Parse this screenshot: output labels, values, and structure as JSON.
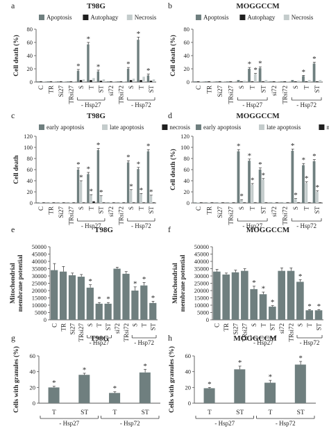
{
  "figure_colors": {
    "dark": "#6f7f7f",
    "mid": "#8a9898",
    "light": "#c4cccc",
    "black": "#1f1f1f",
    "axis": "#555555"
  },
  "chart_data": [
    {
      "id": "a",
      "panel_letter": "a",
      "title": "T98G",
      "type": "bar",
      "ylabel": "Cell death (%)",
      "ylim": [
        0,
        80
      ],
      "yticks": [
        0,
        20,
        40,
        60,
        80
      ],
      "categories": [
        "C",
        "TR",
        "Si27",
        "TRsi27",
        "S",
        "T",
        "ST",
        "si72",
        "TRsi72",
        "S",
        "T",
        "ST"
      ],
      "groups": [
        {
          "label": "- Hsp27",
          "from": 4,
          "to": 6
        },
        {
          "label": "- Hsp72",
          "from": 9,
          "to": 11
        }
      ],
      "legend": [
        "Apoptosis",
        "Autophagy",
        "Necrosis"
      ],
      "series": [
        {
          "name": "Apoptosis",
          "color": "#6f7f7f",
          "values": [
            1,
            1,
            1,
            1,
            17,
            57,
            16,
            1,
            1,
            20,
            64,
            10
          ],
          "err": [
            0,
            0,
            0,
            0,
            2,
            3,
            2,
            0,
            0,
            2,
            4,
            2
          ]
        },
        {
          "name": "Autophagy",
          "color": "#1f1f1f",
          "values": [
            1,
            1,
            1,
            1,
            3,
            3,
            2,
            1,
            1,
            3,
            3,
            2
          ],
          "err": [
            0,
            0,
            0,
            0,
            0,
            0,
            0,
            0,
            0,
            0,
            0,
            0
          ]
        },
        {
          "name": "Necrosis",
          "color": "#c4cccc",
          "values": [
            1,
            1,
            1,
            1,
            4,
            6,
            4,
            1,
            1,
            5,
            8,
            4
          ],
          "err": [
            0,
            0,
            0,
            0,
            0,
            0,
            0,
            0,
            0,
            0,
            0,
            0
          ]
        }
      ],
      "marks": [
        {
          "cat": 4,
          "series": 0,
          "text": "*"
        },
        {
          "cat": 5,
          "series": 0,
          "text": "*"
        },
        {
          "cat": 6,
          "series": 0,
          "text": "*"
        },
        {
          "cat": 9,
          "series": 0,
          "text": "*"
        },
        {
          "cat": 10,
          "series": 0,
          "text": "*"
        },
        {
          "cat": 11,
          "series": 0,
          "text": "*"
        }
      ]
    },
    {
      "id": "b",
      "panel_letter": "b",
      "title": "MOGGCCM",
      "type": "bar",
      "ylabel": "Cell death (%)",
      "ylim": [
        0,
        80
      ],
      "yticks": [
        0,
        20,
        40,
        60,
        80
      ],
      "categories": [
        "C",
        "TR",
        "Si27",
        "TRsi27",
        "S",
        "T",
        "ST",
        "si72",
        "TRsi72",
        "S",
        "T",
        "ST"
      ],
      "groups": [
        {
          "label": "- Hsp27",
          "from": 4,
          "to": 6
        },
        {
          "label": "- Hsp72",
          "from": 9,
          "to": 11
        }
      ],
      "legend": [
        "Apoptosis",
        "Autophagy",
        "Necrosis"
      ],
      "series": [
        {
          "name": "Apoptosis",
          "color": "#6f7f7f",
          "values": [
            1,
            1,
            1,
            1,
            3,
            20,
            21,
            1,
            1,
            3,
            9,
            28
          ],
          "err": [
            0,
            0,
            0,
            0,
            0,
            2,
            2,
            0,
            0,
            0,
            1,
            2
          ]
        },
        {
          "name": "Autophagy",
          "color": "#1f1f1f",
          "values": [
            1,
            1,
            1,
            1,
            1,
            1,
            1,
            1,
            1,
            1,
            1,
            1
          ],
          "err": [
            0,
            0,
            0,
            0,
            0,
            0,
            0,
            0,
            0,
            0,
            0,
            0
          ]
        },
        {
          "name": "Necrosis",
          "color": "#c4cccc",
          "values": [
            1,
            1,
            1,
            1,
            2,
            12,
            3,
            1,
            1,
            2,
            3,
            3
          ],
          "err": [
            0,
            0,
            0,
            0,
            0,
            1,
            0,
            0,
            0,
            0,
            0,
            0
          ]
        }
      ],
      "marks": [
        {
          "cat": 5,
          "series": 0,
          "text": "*"
        },
        {
          "cat": 5,
          "series": 2,
          "text": "*"
        },
        {
          "cat": 6,
          "series": 0,
          "text": "*"
        },
        {
          "cat": 10,
          "series": 0,
          "text": "*"
        },
        {
          "cat": 11,
          "series": 0,
          "text": "*"
        }
      ]
    },
    {
      "id": "c",
      "panel_letter": "c",
      "title": "T98G",
      "type": "bar",
      "ylabel": "Cell death",
      "ylim": [
        0,
        120
      ],
      "yticks": [
        0,
        20,
        40,
        60,
        80,
        100,
        120
      ],
      "categories": [
        "C",
        "TR",
        "Si27",
        "TRsi27",
        "S",
        "T",
        "ST",
        "si72",
        "TRsi72",
        "S",
        "T",
        "ST"
      ],
      "groups": [
        {
          "label": "- Hsp27",
          "from": 4,
          "to": 6
        },
        {
          "label": "- Hsp72",
          "from": 9,
          "to": 11
        }
      ],
      "legend": [
        "early apoptosis",
        "late apoptosis",
        "necrosis"
      ],
      "series": [
        {
          "name": "early apoptosis",
          "color": "#6f7f7f",
          "values": [
            1,
            1,
            1,
            1,
            60,
            52,
            95,
            1,
            1,
            73,
            61,
            93
          ],
          "err": [
            0,
            0,
            0,
            0,
            3,
            3,
            3,
            0,
            0,
            3,
            3,
            3
          ]
        },
        {
          "name": "late apoptosis",
          "color": "#c4cccc",
          "values": [
            1,
            1,
            1,
            1,
            38,
            14,
            12,
            1,
            1,
            22,
            16,
            13
          ],
          "err": [
            0,
            0,
            0,
            0,
            2,
            1,
            1,
            0,
            0,
            2,
            1,
            1
          ]
        },
        {
          "name": "necrosis",
          "color": "#1f1f1f",
          "values": [
            1,
            1,
            1,
            1,
            1,
            3,
            1,
            1,
            1,
            1,
            1,
            1
          ],
          "err": [
            0,
            0,
            0,
            0,
            0,
            0,
            0,
            0,
            0,
            0,
            0,
            0
          ]
        }
      ],
      "marks": [
        {
          "cat": 4,
          "series": 0,
          "text": "*"
        },
        {
          "cat": 4,
          "series": 1,
          "text": "*"
        },
        {
          "cat": 5,
          "series": 0,
          "text": "*"
        },
        {
          "cat": 5,
          "series": 1,
          "text": "*"
        },
        {
          "cat": 6,
          "series": 0,
          "text": "*"
        },
        {
          "cat": 6,
          "series": 1,
          "text": "*"
        },
        {
          "cat": 9,
          "series": 0,
          "text": "*"
        },
        {
          "cat": 9,
          "series": 1,
          "text": "*"
        },
        {
          "cat": 10,
          "series": 0,
          "text": "*"
        },
        {
          "cat": 10,
          "series": 1,
          "text": "*"
        },
        {
          "cat": 11,
          "series": 0,
          "text": "*"
        },
        {
          "cat": 11,
          "series": 1,
          "text": "*"
        }
      ]
    },
    {
      "id": "d",
      "panel_letter": "d",
      "title": "MOGGCCM",
      "type": "bar",
      "ylabel": "Cell death (%)",
      "ylim": [
        0,
        120
      ],
      "yticks": [
        0,
        20,
        40,
        60,
        80,
        100,
        120
      ],
      "categories": [
        "C",
        "TR",
        "Si27",
        "TRsi27",
        "S",
        "T",
        "ST",
        "si72",
        "TRsi72",
        "S",
        "T",
        "ST"
      ],
      "groups": [
        {
          "label": "- Hsp27",
          "from": 4,
          "to": 6
        },
        {
          "label": "- Hsp72",
          "from": 9,
          "to": 11
        }
      ],
      "legend": [
        "early apoptosis",
        "late apoptosis",
        "necrosis"
      ],
      "series": [
        {
          "name": "early apoptosis",
          "color": "#6f7f7f",
          "values": [
            1,
            1,
            1,
            1,
            93,
            76,
            60,
            1,
            1,
            94,
            68,
            75
          ],
          "err": [
            0,
            0,
            0,
            0,
            3,
            3,
            3,
            0,
            0,
            3,
            3,
            3
          ]
        },
        {
          "name": "late apoptosis",
          "color": "#c4cccc",
          "values": [
            1,
            1,
            1,
            1,
            5,
            33,
            42,
            1,
            1,
            7,
            36,
            20
          ],
          "err": [
            0,
            0,
            0,
            0,
            1,
            2,
            2,
            0,
            0,
            1,
            2,
            2
          ]
        },
        {
          "name": "necrosis",
          "color": "#1f1f1f",
          "values": [
            1,
            1,
            1,
            1,
            1,
            1,
            1,
            1,
            1,
            1,
            1,
            1
          ],
          "err": [
            0,
            0,
            0,
            0,
            0,
            0,
            0,
            0,
            0,
            0,
            0,
            0
          ]
        }
      ],
      "marks": [
        {
          "cat": 4,
          "series": 0,
          "text": "*"
        },
        {
          "cat": 4,
          "series": 1,
          "text": "*"
        },
        {
          "cat": 5,
          "series": 0,
          "text": "*"
        },
        {
          "cat": 5,
          "series": 1,
          "text": "*"
        },
        {
          "cat": 6,
          "series": 0,
          "text": "*"
        },
        {
          "cat": 6,
          "series": 1,
          "text": "*"
        },
        {
          "cat": 9,
          "series": 0,
          "text": "*"
        },
        {
          "cat": 9,
          "series": 1,
          "text": "*"
        },
        {
          "cat": 10,
          "series": 0,
          "text": "*"
        },
        {
          "cat": 10,
          "series": 1,
          "text": "*"
        },
        {
          "cat": 11,
          "series": 0,
          "text": "*"
        },
        {
          "cat": 11,
          "series": 1,
          "text": "*"
        }
      ]
    },
    {
      "id": "e",
      "panel_letter": "e",
      "title": "T98G",
      "type": "bar",
      "ylabel": "Mitochondrial membrane potential",
      "ylim": [
        0,
        50000
      ],
      "yticks": [
        0,
        5000,
        10000,
        15000,
        20000,
        25000,
        30000,
        35000,
        40000,
        45000,
        50000
      ],
      "categories": [
        "C",
        "TR",
        "Si27",
        "TRsi27",
        "S",
        "T",
        "ST",
        "si72",
        "TRsi72",
        "S",
        "T",
        "ST"
      ],
      "groups": [
        {
          "label": "- Hsp27",
          "from": 4,
          "to": 6
        },
        {
          "label": "- Hsp72",
          "from": 9,
          "to": 11
        }
      ],
      "legend": [],
      "series": [
        {
          "name": "",
          "color": "#6f7f7f",
          "values": [
            34000,
            33000,
            30500,
            29500,
            22000,
            11000,
            11000,
            35000,
            31500,
            20000,
            23500,
            11500
          ],
          "err": [
            4500,
            3500,
            1500,
            1500,
            2000,
            800,
            800,
            1000,
            1500,
            2500,
            2000,
            1200
          ]
        }
      ],
      "marks": [
        {
          "cat": 4,
          "series": 0,
          "text": "*"
        },
        {
          "cat": 5,
          "series": 0,
          "text": "*"
        },
        {
          "cat": 6,
          "series": 0,
          "text": "*"
        },
        {
          "cat": 9,
          "series": 0,
          "text": "*"
        },
        {
          "cat": 10,
          "series": 0,
          "text": "*"
        },
        {
          "cat": 11,
          "series": 0,
          "text": "*"
        }
      ]
    },
    {
      "id": "f",
      "panel_letter": "f",
      "title": "MOGGCCM",
      "type": "bar",
      "ylabel": "Mitochondrial membrane potential",
      "ylim": [
        0,
        50000
      ],
      "yticks": [
        0,
        5000,
        10000,
        15000,
        20000,
        25000,
        30000,
        35000,
        40000,
        45000,
        50000
      ],
      "categories": [
        "C",
        "TR",
        "Si27",
        "TRsi27",
        "S",
        "T",
        "ST",
        "si72",
        "TRsi72",
        "S",
        "T",
        "ST"
      ],
      "groups": [
        {
          "label": "- Hsp27",
          "from": 4,
          "to": 6
        },
        {
          "label": "- Hsp72",
          "from": 9,
          "to": 11
        }
      ],
      "legend": [],
      "series": [
        {
          "name": "",
          "color": "#6f7f7f",
          "values": [
            33000,
            31000,
            32500,
            33500,
            21000,
            17500,
            9000,
            33500,
            33500,
            26000,
            6500,
            6500
          ],
          "err": [
            1500,
            1000,
            1500,
            1500,
            2000,
            1500,
            700,
            2000,
            2000,
            1500,
            500,
            500
          ]
        }
      ],
      "marks": [
        {
          "cat": 4,
          "series": 0,
          "text": "*"
        },
        {
          "cat": 5,
          "series": 0,
          "text": "*"
        },
        {
          "cat": 6,
          "series": 0,
          "text": "*"
        },
        {
          "cat": 9,
          "series": 0,
          "text": "*"
        },
        {
          "cat": 10,
          "series": 0,
          "text": "*"
        },
        {
          "cat": 11,
          "series": 0,
          "text": "*"
        }
      ]
    },
    {
      "id": "g",
      "panel_letter": "g",
      "title": "T98G",
      "type": "bar",
      "ylabel": "Cells with granules (%)",
      "ylim": [
        0,
        60
      ],
      "yticks": [
        0,
        20,
        40,
        60
      ],
      "categories": [
        "T",
        "ST",
        "T",
        "ST"
      ],
      "groups": [
        {
          "label": "- Hsp27",
          "from": 0,
          "to": 1
        },
        {
          "label": "- Hsp72",
          "from": 2,
          "to": 3
        }
      ],
      "legend": [],
      "series": [
        {
          "name": "",
          "color": "#6f7f7f",
          "values": [
            20,
            36,
            13,
            39
          ],
          "err": [
            1.5,
            2,
            1.5,
            4
          ]
        }
      ],
      "marks": [
        {
          "cat": 0,
          "series": 0,
          "text": "*"
        },
        {
          "cat": 1,
          "series": 0,
          "text": "*"
        },
        {
          "cat": 2,
          "series": 0,
          "text": "*"
        },
        {
          "cat": 3,
          "series": 0,
          "text": "*"
        }
      ]
    },
    {
      "id": "h",
      "panel_letter": "h",
      "title": "MOGGCCM",
      "type": "bar",
      "ylabel": "Cells with granules (%)",
      "ylim": [
        0,
        60
      ],
      "yticks": [
        0,
        20,
        40,
        60
      ],
      "categories": [
        "T",
        "ST",
        "T",
        "ST"
      ],
      "groups": [
        {
          "label": "- Hsp27",
          "from": 0,
          "to": 1
        },
        {
          "label": "- Hsp72",
          "from": 2,
          "to": 3
        }
      ],
      "legend": [],
      "series": [
        {
          "name": "",
          "color": "#6f7f7f",
          "values": [
            19,
            43,
            26,
            49
          ],
          "err": [
            1,
            4,
            3,
            4
          ]
        }
      ],
      "marks": [
        {
          "cat": 0,
          "series": 0,
          "text": "*"
        },
        {
          "cat": 1,
          "series": 0,
          "text": "*"
        },
        {
          "cat": 2,
          "series": 0,
          "text": "*"
        },
        {
          "cat": 3,
          "series": 0,
          "text": "*"
        }
      ]
    }
  ]
}
